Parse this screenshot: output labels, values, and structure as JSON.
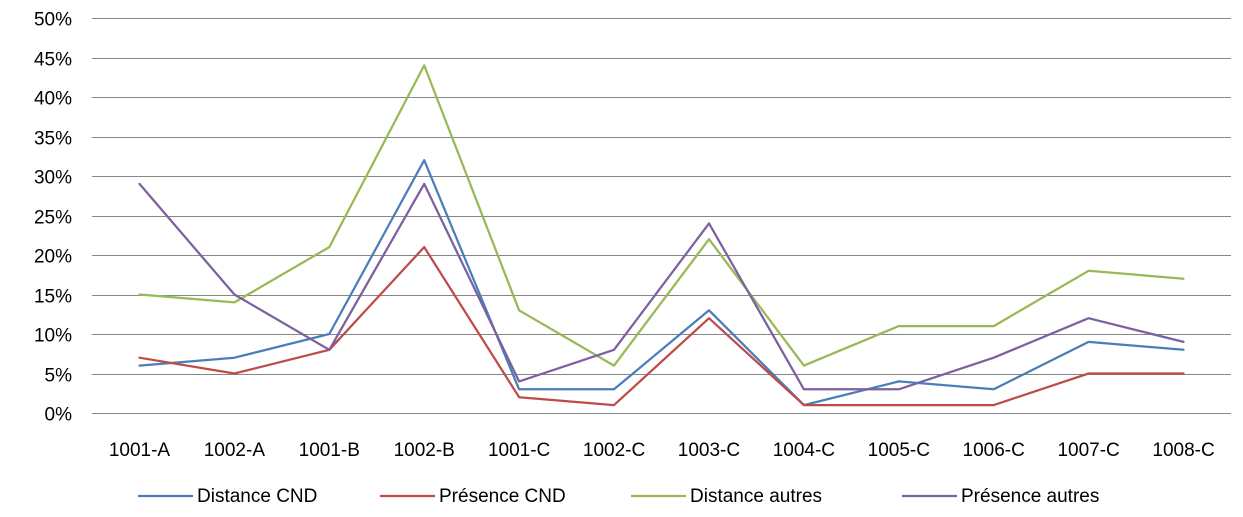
{
  "chart_data": {
    "type": "line",
    "categories": [
      "1001-A",
      "1002-A",
      "1001-B",
      "1002-B",
      "1001-C",
      "1002-C",
      "1003-C",
      "1004-C",
      "1005-C",
      "1006-C",
      "1007-C",
      "1008-C"
    ],
    "y_ticks": [
      "0%",
      "5%",
      "10%",
      "15%",
      "20%",
      "25%",
      "30%",
      "35%",
      "40%",
      "45%",
      "50%"
    ],
    "ylim": [
      0,
      50
    ],
    "y_unit": "%",
    "grid": "horizontal",
    "legend_position": "bottom",
    "series": [
      {
        "name": "Distance CND",
        "color": "#4A7EBB",
        "values": [
          6,
          7,
          10,
          32,
          3,
          3,
          13,
          1,
          4,
          3,
          9,
          8
        ]
      },
      {
        "name": "Présence CND",
        "color": "#BE4B48",
        "values": [
          7,
          5,
          8,
          21,
          2,
          1,
          12,
          1,
          1,
          1,
          5,
          5
        ]
      },
      {
        "name": "Distance autres",
        "color": "#98B954",
        "values": [
          15,
          14,
          21,
          44,
          13,
          6,
          22,
          6,
          11,
          11,
          18,
          17
        ]
      },
      {
        "name": "Présence autres",
        "color": "#7D60A0",
        "values": [
          29,
          15,
          8,
          29,
          4,
          8,
          24,
          3,
          3,
          7,
          12,
          9
        ]
      }
    ],
    "gridline_color": "#868686"
  }
}
